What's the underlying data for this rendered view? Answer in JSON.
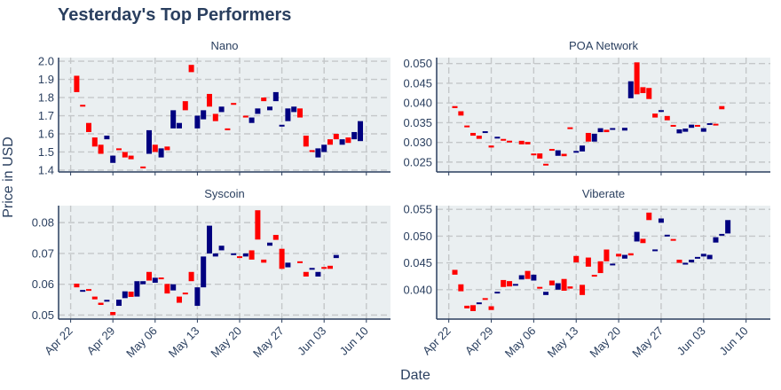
{
  "title": "Yesterday's Top Performers",
  "xlabel": "Date",
  "ylabel": "Price in USD",
  "colors": {
    "up": "#000080",
    "down": "#ff0000",
    "plot_bg": "#eaeff1",
    "grid": "#c4c7c9",
    "text": "#2a3f5f"
  },
  "chart_data": [
    {
      "type": "candlestick",
      "title": "Nano",
      "x_ticks": [
        "Apr 22",
        "Apr 29",
        "May 06",
        "May 13",
        "May 20",
        "May 27",
        "Jun 03",
        "Jun 10"
      ],
      "y_ticks": [
        "1.4",
        "1.5",
        "1.6",
        "1.7",
        "1.8",
        "1.9",
        "2.0"
      ],
      "ylim": [
        1.39,
        2.02
      ],
      "candles": [
        [
          "2019-04-23",
          1.92,
          1.83
        ],
        [
          "2019-04-24",
          1.76,
          1.75
        ],
        [
          "2019-04-25",
          1.66,
          1.61
        ],
        [
          "2019-04-26",
          1.58,
          1.53
        ],
        [
          "2019-04-27",
          1.54,
          1.49
        ],
        [
          "2019-04-28",
          1.57,
          1.59
        ],
        [
          "2019-04-29",
          1.44,
          1.48
        ],
        [
          "2019-04-30",
          1.52,
          1.51
        ],
        [
          "2019-05-01",
          1.5,
          1.47
        ],
        [
          "2019-05-02",
          1.48,
          1.46
        ],
        [
          "2019-05-04",
          1.42,
          1.41
        ],
        [
          "2019-05-05",
          1.49,
          1.62
        ],
        [
          "2019-05-06",
          1.54,
          1.5
        ],
        [
          "2019-05-07",
          1.47,
          1.52
        ],
        [
          "2019-05-08",
          1.53,
          1.51
        ],
        [
          "2019-05-09",
          1.63,
          1.73
        ],
        [
          "2019-05-10",
          1.63,
          1.66
        ],
        [
          "2019-05-11",
          1.78,
          1.73
        ],
        [
          "2019-05-12",
          1.98,
          1.94
        ],
        [
          "2019-05-13",
          1.63,
          1.7
        ],
        [
          "2019-05-14",
          1.68,
          1.73
        ],
        [
          "2019-05-15",
          1.82,
          1.75
        ],
        [
          "2019-05-16",
          1.71,
          1.67
        ],
        [
          "2019-05-17",
          1.72,
          1.75
        ],
        [
          "2019-05-18",
          1.63,
          1.62
        ],
        [
          "2019-05-19",
          1.77,
          1.76
        ],
        [
          "2019-05-21",
          1.7,
          1.69
        ],
        [
          "2019-05-22",
          1.66,
          1.69
        ],
        [
          "2019-05-23",
          1.71,
          1.74
        ],
        [
          "2019-05-24",
          1.8,
          1.78
        ],
        [
          "2019-05-25",
          1.73,
          1.75
        ],
        [
          "2019-05-26",
          1.78,
          1.83
        ],
        [
          "2019-05-27",
          1.64,
          1.65
        ],
        [
          "2019-05-28",
          1.67,
          1.74
        ],
        [
          "2019-05-29",
          1.72,
          1.75
        ],
        [
          "2019-05-30",
          1.74,
          1.69
        ],
        [
          "2019-05-31",
          1.59,
          1.53
        ],
        [
          "2019-06-01",
          1.51,
          1.5
        ],
        [
          "2019-06-02",
          1.47,
          1.52
        ],
        [
          "2019-06-03",
          1.5,
          1.54
        ],
        [
          "2019-06-04",
          1.57,
          1.54
        ],
        [
          "2019-06-05",
          1.6,
          1.57
        ],
        [
          "2019-06-06",
          1.54,
          1.57
        ],
        [
          "2019-06-07",
          1.58,
          1.55
        ],
        [
          "2019-06-08",
          1.57,
          1.61
        ],
        [
          "2019-06-09",
          1.56,
          1.67
        ]
      ]
    },
    {
      "type": "candlestick",
      "title": "POA Network",
      "x_ticks": [
        "Apr 22",
        "Apr 29",
        "May 06",
        "May 13",
        "May 20",
        "May 27",
        "Jun 03",
        "Jun 10"
      ],
      "y_ticks": [
        "0.025",
        "0.030",
        "0.035",
        "0.040",
        "0.045",
        "0.050"
      ],
      "ylim": [
        0.0225,
        0.0515
      ],
      "candles": [
        [
          "2019-04-23",
          0.0392,
          0.0387
        ],
        [
          "2019-04-24",
          0.0379,
          0.0368
        ],
        [
          "2019-04-25",
          0.0341,
          0.034
        ],
        [
          "2019-04-26",
          0.0324,
          0.0317
        ],
        [
          "2019-04-27",
          0.0317,
          0.0309
        ],
        [
          "2019-04-28",
          0.0325,
          0.0327
        ],
        [
          "2019-04-29",
          0.0292,
          0.0287
        ],
        [
          "2019-04-30",
          0.0311,
          0.0313
        ],
        [
          "2019-05-01",
          0.0307,
          0.0306
        ],
        [
          "2019-05-02",
          0.0303,
          0.0301
        ],
        [
          "2019-05-04",
          0.0304,
          0.0295
        ],
        [
          "2019-05-05",
          0.0301,
          0.0295
        ],
        [
          "2019-05-06",
          0.0271,
          0.0268
        ],
        [
          "2019-05-07",
          0.0272,
          0.0259
        ],
        [
          "2019-05-08",
          0.0245,
          0.0242
        ],
        [
          "2019-05-09",
          0.0282,
          0.028
        ],
        [
          "2019-05-10",
          0.0266,
          0.028
        ],
        [
          "2019-05-11",
          0.0271,
          0.0265
        ],
        [
          "2019-05-12",
          0.0337,
          0.0335
        ],
        [
          "2019-05-13",
          0.0274,
          0.0278
        ],
        [
          "2019-05-14",
          0.0277,
          0.0292
        ],
        [
          "2019-05-15",
          0.0324,
          0.0302
        ],
        [
          "2019-05-16",
          0.0302,
          0.0322
        ],
        [
          "2019-05-17",
          0.0326,
          0.0336
        ],
        [
          "2019-05-18",
          0.0332,
          0.0326
        ],
        [
          "2019-05-19",
          0.0334,
          0.0334
        ],
        [
          "2019-05-21",
          0.033,
          0.0337
        ],
        [
          "2019-05-22",
          0.0412,
          0.0455
        ],
        [
          "2019-05-23",
          0.0503,
          0.0422
        ],
        [
          "2019-05-24",
          0.044,
          0.0425
        ],
        [
          "2019-05-25",
          0.0438,
          0.041
        ],
        [
          "2019-05-26",
          0.0373,
          0.0363
        ],
        [
          "2019-05-27",
          0.0379,
          0.038
        ],
        [
          "2019-05-28",
          0.0367,
          0.0356
        ],
        [
          "2019-05-29",
          0.0343,
          0.0341
        ],
        [
          "2019-05-30",
          0.0323,
          0.0333
        ],
        [
          "2019-05-31",
          0.0327,
          0.0335
        ],
        [
          "2019-06-01",
          0.0337,
          0.0345
        ],
        [
          "2019-06-02",
          0.0343,
          0.0341
        ],
        [
          "2019-06-03",
          0.0327,
          0.0336
        ],
        [
          "2019-06-04",
          0.0346,
          0.0347
        ],
        [
          "2019-06-05",
          0.0346,
          0.0344
        ],
        [
          "2019-06-06",
          0.0392,
          0.0384
        ]
      ]
    },
    {
      "type": "candlestick",
      "title": "Syscoin",
      "x_ticks": [
        "Apr 22",
        "Apr 29",
        "May 06",
        "May 13",
        "May 20",
        "May 27",
        "Jun 03",
        "Jun 10"
      ],
      "y_ticks": [
        "0.05",
        "0.06",
        "0.07",
        "0.08"
      ],
      "ylim": [
        0.0487,
        0.0855
      ],
      "candles": [
        [
          "2019-04-23",
          0.0602,
          0.059
        ],
        [
          "2019-04-24",
          0.0577,
          0.058
        ],
        [
          "2019-04-25",
          0.0583,
          0.058
        ],
        [
          "2019-04-26",
          0.056,
          0.0551
        ],
        [
          "2019-04-27",
          0.054,
          0.0533
        ],
        [
          "2019-04-28",
          0.0545,
          0.0548
        ],
        [
          "2019-04-29",
          0.051,
          0.05
        ],
        [
          "2019-04-30",
          0.053,
          0.055
        ],
        [
          "2019-05-01",
          0.0555,
          0.0577
        ],
        [
          "2019-05-02",
          0.0576,
          0.0559
        ],
        [
          "2019-05-03",
          0.056,
          0.061
        ],
        [
          "2019-05-04",
          0.06,
          0.061
        ],
        [
          "2019-05-05",
          0.064,
          0.0612
        ],
        [
          "2019-05-06",
          0.0605,
          0.0621
        ],
        [
          "2019-05-07",
          0.062,
          0.0618
        ],
        [
          "2019-05-08",
          0.0601,
          0.057
        ],
        [
          "2019-05-09",
          0.058,
          0.06
        ],
        [
          "2019-05-10",
          0.056,
          0.054
        ],
        [
          "2019-05-11",
          0.0571,
          0.0569
        ],
        [
          "2019-05-12",
          0.064,
          0.061
        ],
        [
          "2019-05-13",
          0.053,
          0.059
        ],
        [
          "2019-05-14",
          0.059,
          0.069
        ],
        [
          "2019-05-15",
          0.07,
          0.079
        ],
        [
          "2019-05-16",
          0.069,
          0.07
        ],
        [
          "2019-05-17",
          0.071,
          0.0725
        ],
        [
          "2019-05-19",
          0.0695,
          0.07
        ],
        [
          "2019-05-20",
          0.069,
          0.0686
        ],
        [
          "2019-05-21",
          0.069,
          0.07
        ],
        [
          "2019-05-22",
          0.071,
          0.068
        ],
        [
          "2019-05-23",
          0.084,
          0.0745
        ],
        [
          "2019-05-24",
          0.068,
          0.067
        ],
        [
          "2019-05-25",
          0.0725,
          0.0735
        ],
        [
          "2019-05-26",
          0.076,
          0.0744
        ],
        [
          "2019-05-27",
          0.0715,
          0.065
        ],
        [
          "2019-05-28",
          0.0655,
          0.067
        ],
        [
          "2019-05-30",
          0.0672,
          0.0671
        ],
        [
          "2019-05-31",
          0.064,
          0.0625
        ],
        [
          "2019-06-01",
          0.065,
          0.065
        ],
        [
          "2019-06-02",
          0.0625,
          0.064
        ],
        [
          "2019-06-03",
          0.0654,
          0.0652
        ],
        [
          "2019-06-04",
          0.066,
          0.065
        ],
        [
          "2019-06-05",
          0.0685,
          0.0695
        ]
      ]
    },
    {
      "type": "candlestick",
      "title": "Viberate",
      "x_ticks": [
        "Apr 22",
        "Apr 29",
        "May 06",
        "May 13",
        "May 20",
        "May 27",
        "Jun 03",
        "Jun 10"
      ],
      "y_ticks": [
        "0.040",
        "0.045",
        "0.050",
        "0.055"
      ],
      "ylim": [
        0.0345,
        0.0557
      ],
      "candles": [
        [
          "2019-04-23",
          0.0437,
          0.0428
        ],
        [
          "2019-04-24",
          0.041,
          0.0397
        ],
        [
          "2019-04-25",
          0.037,
          0.0365
        ],
        [
          "2019-04-26",
          0.0371,
          0.036
        ],
        [
          "2019-04-27",
          0.0374,
          0.0375
        ],
        [
          "2019-04-28",
          0.0384,
          0.0381
        ],
        [
          "2019-04-29",
          0.0369,
          0.0362
        ],
        [
          "2019-04-30",
          0.0393,
          0.0396
        ],
        [
          "2019-05-01",
          0.0418,
          0.0405
        ],
        [
          "2019-05-02",
          0.0416,
          0.0406
        ],
        [
          "2019-05-03",
          0.0409,
          0.0409
        ],
        [
          "2019-05-04",
          0.0419,
          0.0427
        ],
        [
          "2019-05-05",
          0.0435,
          0.042
        ],
        [
          "2019-05-06",
          0.0417,
          0.0428
        ],
        [
          "2019-05-07",
          0.0405,
          0.0402
        ],
        [
          "2019-05-08",
          0.039,
          0.0396
        ],
        [
          "2019-05-09",
          0.0417,
          0.0408
        ],
        [
          "2019-05-10",
          0.04,
          0.0412
        ],
        [
          "2019-05-11",
          0.042,
          0.0398
        ],
        [
          "2019-05-12",
          0.0406,
          0.0402
        ],
        [
          "2019-05-13",
          0.0463,
          0.0451
        ],
        [
          "2019-05-14",
          0.0409,
          0.039
        ],
        [
          "2019-05-15",
          0.046,
          0.0443
        ],
        [
          "2019-05-16",
          0.0427,
          0.0425
        ],
        [
          "2019-05-17",
          0.0453,
          0.0431
        ],
        [
          "2019-05-18",
          0.0475,
          0.0453
        ],
        [
          "2019-05-19",
          0.0446,
          0.0448
        ],
        [
          "2019-05-20",
          0.0467,
          0.0462
        ],
        [
          "2019-05-21",
          0.0458,
          0.0465
        ],
        [
          "2019-05-22",
          0.0468,
          0.0464
        ],
        [
          "2019-05-23",
          0.049,
          0.0508
        ],
        [
          "2019-05-24",
          0.0495,
          0.0487
        ],
        [
          "2019-05-25",
          0.0544,
          0.053
        ],
        [
          "2019-05-26",
          0.0473,
          0.0474
        ],
        [
          "2019-05-27",
          0.0525,
          0.0533
        ],
        [
          "2019-05-28",
          0.05,
          0.0502
        ],
        [
          "2019-05-29",
          0.0494,
          0.0492
        ],
        [
          "2019-05-30",
          0.0456,
          0.045
        ],
        [
          "2019-05-31",
          0.0447,
          0.045
        ],
        [
          "2019-06-01",
          0.0451,
          0.0456
        ],
        [
          "2019-06-02",
          0.0458,
          0.0461
        ],
        [
          "2019-06-03",
          0.0462,
          0.0467
        ],
        [
          "2019-06-04",
          0.0457,
          0.0465
        ],
        [
          "2019-06-05",
          0.0488,
          0.0498
        ],
        [
          "2019-06-06",
          0.0502,
          0.0503
        ],
        [
          "2019-06-07",
          0.0505,
          0.053
        ]
      ]
    }
  ]
}
